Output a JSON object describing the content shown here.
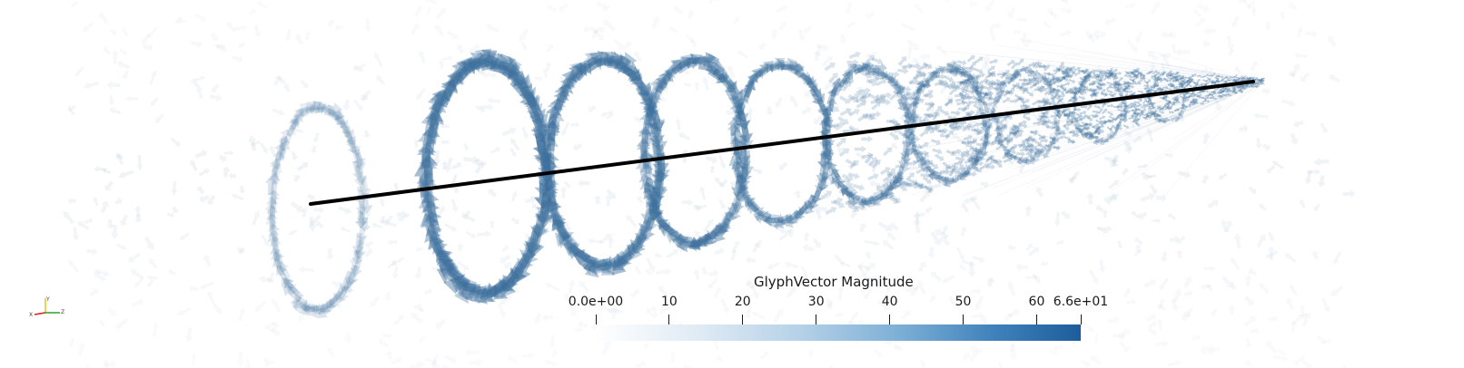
{
  "legend": {
    "title": "GlyphVector Magnitude",
    "ticks": [
      {
        "label": "0.0e+00",
        "value": 0
      },
      {
        "label": "10",
        "value": 10
      },
      {
        "label": "20",
        "value": 20
      },
      {
        "label": "30",
        "value": 30
      },
      {
        "label": "40",
        "value": 40
      },
      {
        "label": "50",
        "value": 50
      },
      {
        "label": "60",
        "value": 60
      },
      {
        "label": "6.6e+01",
        "value": 66
      }
    ],
    "range": [
      0,
      66
    ],
    "colors": [
      "#ffffff",
      "#1c5d9b"
    ]
  },
  "orientation_axes": {
    "x_label": "X",
    "y_label": "Y",
    "z_label": "Z",
    "x_color": "#d62020",
    "y_color": "#e6c619",
    "z_color": "#2ca02c"
  },
  "glyph_color": "#3c6f9c",
  "line_color": "#000000"
}
